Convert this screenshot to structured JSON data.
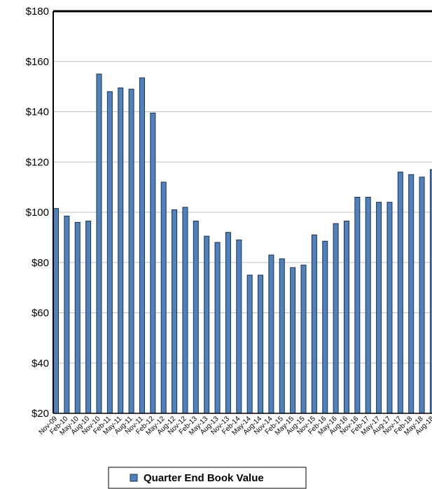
{
  "chart_data": {
    "type": "bar",
    "categories": [
      "Nov-09",
      "Feb-10",
      "May-10",
      "Aug-10",
      "Nov-10",
      "Feb-11",
      "May-11",
      "Aug-11",
      "Nov-11",
      "Feb-12",
      "May-12",
      "Aug-12",
      "Nov-12",
      "Feb-13",
      "May-13",
      "Aug-13",
      "Nov-13",
      "Feb-14",
      "May-14",
      "Aug-14",
      "Nov-14",
      "Feb-15",
      "May-15",
      "Aug-15",
      "Nov-15",
      "Feb-16",
      "May-16",
      "Aug-16",
      "Nov-16",
      "Feb-17",
      "May-17",
      "Aug-17",
      "Nov-17",
      "Feb-18",
      "May-18",
      "Aug-18"
    ],
    "series": [
      {
        "name": "Quarter End Book Value",
        "color": "#4f81bd",
        "values": [
          101.5,
          98.5,
          96,
          96.5,
          155,
          148,
          149.5,
          149,
          153.5,
          139.5,
          112,
          101,
          102,
          96.5,
          90.5,
          88,
          92,
          89,
          75,
          75,
          83,
          81.5,
          78,
          79,
          91,
          88.5,
          95.5,
          96.5,
          106,
          106,
          104,
          104,
          116,
          115,
          114,
          117
        ]
      }
    ],
    "ylim": [
      20,
      180
    ],
    "yticks": [
      {
        "value": 20,
        "label": "$20"
      },
      {
        "value": 40,
        "label": "$40"
      },
      {
        "value": 60,
        "label": "$60"
      },
      {
        "value": 80,
        "label": "$80"
      },
      {
        "value": 100,
        "label": "$100"
      },
      {
        "value": 120,
        "label": "$120"
      },
      {
        "value": 140,
        "label": "$140"
      },
      {
        "value": 160,
        "label": "$160"
      },
      {
        "value": 180,
        "label": "$180"
      }
    ],
    "grid": true,
    "legend": "bottom"
  }
}
